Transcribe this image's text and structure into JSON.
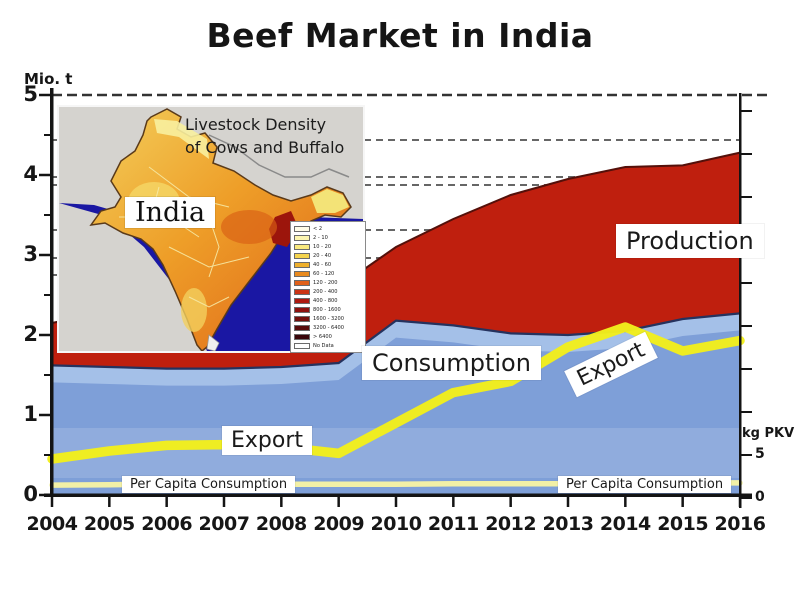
{
  "title": "Beef Market in India",
  "axes": {
    "left_unit": "Mio. t",
    "right_unit": "kg PKV",
    "left_ticks": [
      "5",
      "4",
      "3",
      "2",
      "1",
      "0"
    ],
    "left_tick_values": [
      5,
      4,
      3,
      2,
      1,
      0
    ],
    "right_tick_labels": [
      "5",
      "0"
    ],
    "right_tick_label_values": [
      5,
      0
    ],
    "x_ticks": [
      "2004",
      "2005",
      "2006",
      "2007",
      "2008",
      "2009",
      "2010",
      "2011",
      "2012",
      "2013",
      "2014",
      "2015",
      "2016"
    ]
  },
  "labels": {
    "production": "Production",
    "consumption": "Consumption",
    "export": "Export",
    "export_rotated": "Export",
    "per_capita_left": "Per Capita Consumption",
    "per_capita_right": "Per Capita Consumption"
  },
  "map_inset": {
    "title_line1": "Livestock Density",
    "title_line2": "of Cows and Buffalo",
    "country_label": "India",
    "legend": [
      {
        "label": "< 2",
        "color": "#fffde9"
      },
      {
        "label": "2 - 10",
        "color": "#fdf6b0"
      },
      {
        "label": "10 - 20",
        "color": "#f9e97e"
      },
      {
        "label": "20 - 40",
        "color": "#f5d44e"
      },
      {
        "label": "40 - 60",
        "color": "#efb02c"
      },
      {
        "label": "60 - 120",
        "color": "#e98a1e"
      },
      {
        "label": "120 - 200",
        "color": "#e0601a"
      },
      {
        "label": "200 - 400",
        "color": "#cb3414"
      },
      {
        "label": "400 - 800",
        "color": "#ad1a10"
      },
      {
        "label": "800 - 1600",
        "color": "#8d120e"
      },
      {
        "label": "1600 - 3200",
        "color": "#72100c"
      },
      {
        "label": "3200 - 6400",
        "color": "#570b0a"
      },
      {
        "label": "> 6400",
        "color": "#39060a"
      },
      {
        "label": "No Data",
        "color": "#ffffff"
      }
    ]
  },
  "colors": {
    "production": "#bf1f0e",
    "production_edge": "#54100a",
    "consumption": "#7e9fd8",
    "consumption_light": "#a9c3ea",
    "consumption_edge": "#25325e",
    "export": "#f2ee1c",
    "per_capita": "#f2f0a6",
    "grid": "#666666",
    "axis": "#141414",
    "map_ocean": "#1a17a3",
    "map_land_bg": "#d5d3cf"
  },
  "chart_data": {
    "type": "area",
    "title": "Beef Market in India",
    "x": [
      2004,
      2005,
      2006,
      2007,
      2008,
      2009,
      2010,
      2011,
      2012,
      2013,
      2014,
      2015,
      2016
    ],
    "ylabel_left": "Mio. t",
    "ylabel_right": "kg PKV",
    "ylim_left": [
      0,
      5
    ],
    "right_axis_labeled_ticks": [
      0,
      5
    ],
    "grid": "dashed-horizontal",
    "series": [
      {
        "name": "Production",
        "type": "area",
        "axis": "left",
        "unit": "Mio. t",
        "values": [
          2.15,
          2.3,
          2.42,
          2.5,
          2.55,
          2.6,
          3.1,
          3.45,
          3.75,
          3.95,
          4.1,
          4.12,
          4.28
        ]
      },
      {
        "name": "Consumption",
        "type": "area",
        "axis": "left",
        "unit": "Mio. t",
        "values": [
          1.62,
          1.6,
          1.58,
          1.58,
          1.6,
          1.65,
          2.18,
          2.12,
          2.02,
          2.0,
          2.05,
          2.2,
          2.27
        ]
      },
      {
        "name": "Export",
        "type": "line",
        "axis": "left",
        "unit": "Mio. t",
        "values": [
          0.45,
          0.55,
          0.62,
          0.63,
          0.6,
          0.52,
          0.9,
          1.28,
          1.42,
          1.85,
          2.1,
          1.8,
          1.93
        ]
      },
      {
        "name": "Per Capita Consumption",
        "type": "line",
        "axis": "right",
        "unit": "kg PKV",
        "values": [
          1.5,
          1.55,
          1.6,
          1.6,
          1.6,
          1.6,
          1.6,
          1.65,
          1.65,
          1.65,
          1.7,
          1.75,
          1.75
        ]
      }
    ]
  }
}
